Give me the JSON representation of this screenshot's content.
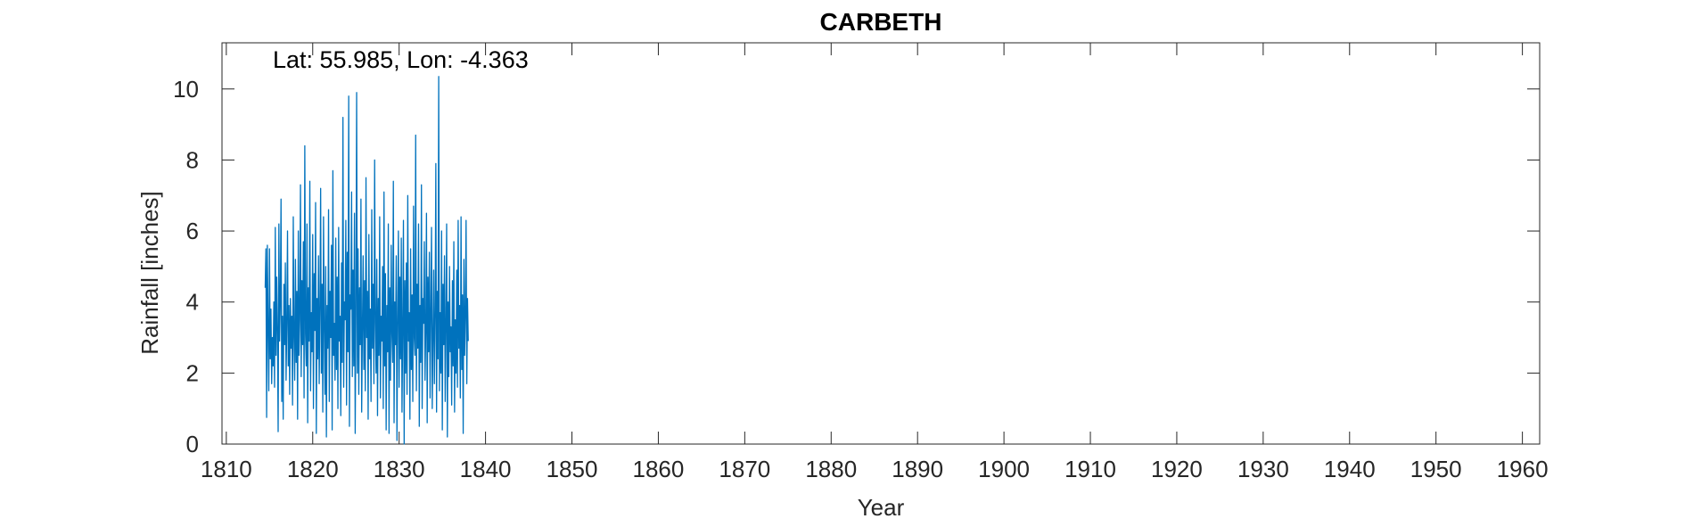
{
  "chart_data": {
    "type": "line",
    "title": "CARBETH",
    "annotation": "Lat: 55.985, Lon: -4.363",
    "xlabel": "Year",
    "ylabel": "Rainfall [inches]",
    "xlim": [
      1809.5,
      1962
    ],
    "ylim": [
      0,
      11.3
    ],
    "xticks": [
      1810,
      1820,
      1830,
      1840,
      1850,
      1860,
      1870,
      1880,
      1890,
      1900,
      1910,
      1920,
      1930,
      1940,
      1950,
      1960
    ],
    "yticks": [
      0,
      2,
      4,
      6,
      8,
      10
    ],
    "grid": false,
    "box": true,
    "line_color": "#0072BD",
    "series": [
      {
        "x_start": 1814.5,
        "x_step": 0.08333,
        "values": [
          4.4,
          5.5,
          0.75,
          5.6,
          3.2,
          1.5,
          5.5,
          2.4,
          3.8,
          1.7,
          3.0,
          2.2,
          4.0,
          1.6,
          6.1,
          2.5,
          4.7,
          3.1,
          0.35,
          6.2,
          2.9,
          4.0,
          6.9,
          1.2,
          3.6,
          0.7,
          4.5,
          2.8,
          5.1,
          1.8,
          3.4,
          6.0,
          2.2,
          3.9,
          1.4,
          4.1,
          2.7,
          3.6,
          1.1,
          6.4,
          3.0,
          1.8,
          5.2,
          2.3,
          4.3,
          0.7,
          6.0,
          2.5,
          3.5,
          7.3,
          1.9,
          4.6,
          2.8,
          5.7,
          1.3,
          8.4,
          3.1,
          2.2,
          6.2,
          0.6,
          4.4,
          2.9,
          7.4,
          1.5,
          3.7,
          2.6,
          5.9,
          1.0,
          4.8,
          3.2,
          6.8,
          0.3,
          4.1,
          2.4,
          5.3,
          1.7,
          3.8,
          7.2,
          2.0,
          4.5,
          0.9,
          6.4,
          3.3,
          1.4,
          5.0,
          0.2,
          3.9,
          2.7,
          6.6,
          1.2,
          4.3,
          3.0,
          5.6,
          0.4,
          7.7,
          2.5,
          3.4,
          1.8,
          5.8,
          2.1,
          4.7,
          1.0,
          6.1,
          2.9,
          3.6,
          0.8,
          5.1,
          2.3,
          9.2,
          1.6,
          4.0,
          3.5,
          6.3,
          1.1,
          5.4,
          2.6,
          9.8,
          0.5,
          4.2,
          3.8,
          7.1,
          1.9,
          4.9,
          2.2,
          6.5,
          0.3,
          3.7,
          9.9,
          2.0,
          5.5,
          1.4,
          4.4,
          2.8,
          6.9,
          0.9,
          3.2,
          5.3,
          2.1,
          4.6,
          1.5,
          7.5,
          3.0,
          4.3,
          0.7,
          5.9,
          2.4,
          3.8,
          1.2,
          6.6,
          2.7,
          4.5,
          1.7,
          8.0,
          3.4,
          2.0,
          5.2,
          0.8,
          4.1,
          2.5,
          6.4,
          1.3,
          3.6,
          2.9,
          5.0,
          1.0,
          7.1,
          2.2,
          4.8,
          0.4,
          3.9,
          2.6,
          6.2,
          0.3,
          4.4,
          1.8,
          5.6,
          3.1,
          2.3,
          7.4,
          0.6,
          4.0,
          2.8,
          5.3,
          0.1,
          3.5,
          6.0,
          1.6,
          4.7,
          2.4,
          5.8,
          0.9,
          3.3,
          6.3,
          0.0,
          4.6,
          2.0,
          5.1,
          1.4,
          7.0,
          2.9,
          3.7,
          0.7,
          5.5,
          2.1,
          4.2,
          1.2,
          6.7,
          3.0,
          2.5,
          8.7,
          1.5,
          4.5,
          2.7,
          6.2,
          0.5,
          3.9,
          2.3,
          7.3,
          1.0,
          4.1,
          3.4,
          5.7,
          1.8,
          3.2,
          6.5,
          0.6,
          4.7,
          2.6,
          5.4,
          1.3,
          3.8,
          6.1,
          1.0,
          2.9,
          4.9,
          1.7,
          3.6,
          7.9,
          0.9,
          4.3,
          2.4,
          10.35,
          1.5,
          3.7,
          2.0,
          6.0,
          0.4,
          4.5,
          2.8,
          5.3,
          1.2,
          3.4,
          6.2,
          0.2,
          4.0,
          1.9,
          5.0,
          2.6,
          3.3,
          1.1,
          4.6,
          2.2,
          5.7,
          0.9,
          3.5,
          2.0,
          4.9,
          1.6,
          6.3,
          2.7,
          3.9,
          1.3,
          6.4,
          2.1,
          4.2,
          0.3,
          5.2,
          2.5,
          3.6,
          6.3,
          1.7,
          4.1,
          2.9
        ]
      }
    ]
  }
}
